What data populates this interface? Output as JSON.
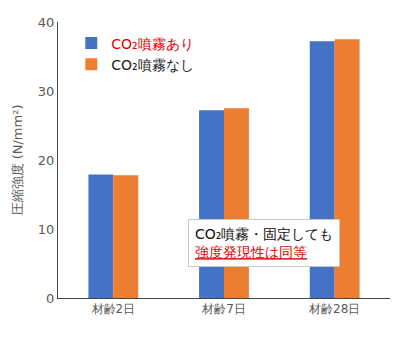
{
  "chart_data": {
    "type": "bar",
    "categories": [
      "材齢2日",
      "材齢7日",
      "材齢28日"
    ],
    "series": [
      {
        "name": "CO₂噴霧あり",
        "color": "#4472c4",
        "values": [
          17.9,
          27.2,
          37.2
        ]
      },
      {
        "name": "CO₂噴霧なし",
        "color": "#ed7d31",
        "values": [
          17.8,
          27.5,
          37.5
        ]
      }
    ],
    "y_label": "圧縮強度 (N/mm²)",
    "annotations": [
      "CO₂噴霧・固定しても",
      "強度発現性は同等"
    ],
    "ylim": [
      0,
      40
    ],
    "yticks": [
      0,
      10,
      20,
      30,
      40
    ],
    "grid": false,
    "legend": "top-left"
  }
}
